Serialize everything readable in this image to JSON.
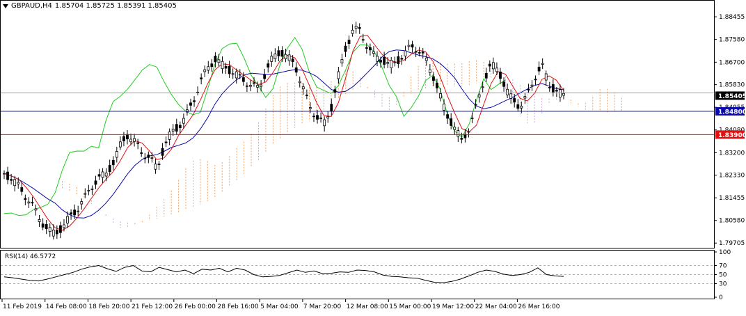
{
  "header": {
    "symbol": "GBPAUD,H4",
    "ohlc": "1.85704 1.85725 1.85391 1.85405"
  },
  "rsi_panel": {
    "label": "RSI(14) 46.5772"
  },
  "price_axis": {
    "ticks": [
      "1.88455",
      "1.87580",
      "1.86700",
      "1.85830",
      "1.84955",
      "1.84080",
      "1.83200",
      "1.82330",
      "1.81455",
      "1.80580",
      "1.79705"
    ],
    "labels": {
      "current": {
        "text": "1.85405",
        "value": 1.85405,
        "color": "#000000"
      },
      "blue": {
        "text": "1.84800",
        "value": 1.848,
        "color": "#0a0aa8"
      },
      "red": {
        "text": "1.83900",
        "value": 1.839,
        "color": "#e01010"
      }
    }
  },
  "rsi_axis": {
    "ticks": [
      "100",
      "70",
      "50",
      "30",
      "0"
    ]
  },
  "time_axis": {
    "labels": [
      "11 Feb 2019",
      "14 Feb 08:00",
      "18 Feb 20:00",
      "21 Feb 12:00",
      "26 Feb 00:00",
      "28 Feb 16:00",
      "5 Mar 04:00",
      "7 Mar 20:00",
      "12 Mar 08:00",
      "15 Mar 00:00",
      "19 Mar 12:00",
      "22 Mar 04:00",
      "26 Mar 16:00"
    ]
  },
  "chart_data": {
    "type": "line",
    "title": "GBPAUD,H4",
    "ylim": [
      1.7955,
      1.8905
    ],
    "hlines": [
      {
        "name": "orange",
        "value": 1.8551,
        "color": "#d88a3a"
      },
      {
        "name": "blue",
        "value": 1.848,
        "color": "#0a0aa8"
      },
      {
        "name": "red",
        "value": 1.839,
        "color": "#e01010"
      }
    ],
    "price_path": [
      1.824,
      1.822,
      1.819,
      1.815,
      1.811,
      1.806,
      1.802,
      1.801,
      1.803,
      1.807,
      1.81,
      1.814,
      1.819,
      1.822,
      1.824,
      1.828,
      1.835,
      1.839,
      1.836,
      1.832,
      1.83,
      1.826,
      1.834,
      1.84,
      1.842,
      1.846,
      1.852,
      1.859,
      1.865,
      1.868,
      1.866,
      1.864,
      1.862,
      1.86,
      1.858,
      1.857,
      1.863,
      1.869,
      1.871,
      1.869,
      1.866,
      1.858,
      1.85,
      1.846,
      1.843,
      1.849,
      1.862,
      1.872,
      1.88,
      1.879,
      1.873,
      1.869,
      1.868,
      1.866,
      1.867,
      1.87,
      1.873,
      1.872,
      1.868,
      1.862,
      1.854,
      1.846,
      1.842,
      1.836,
      1.842,
      1.85,
      1.86,
      1.866,
      1.864,
      1.857,
      1.852,
      1.85,
      1.854,
      1.861,
      1.866,
      1.858,
      1.856,
      1.854
    ],
    "rsi_values": [
      45,
      43,
      40,
      37,
      36,
      40,
      45,
      50,
      55,
      62,
      67,
      70,
      63,
      57,
      66,
      70,
      58,
      56,
      66,
      61,
      56,
      60,
      52,
      62,
      60,
      64,
      56,
      64,
      60,
      50,
      45,
      46,
      48,
      54,
      60,
      55,
      58,
      52,
      53,
      56,
      55,
      60,
      59,
      56,
      49,
      46,
      45,
      43,
      42,
      37,
      33,
      32,
      35,
      40,
      47,
      55,
      60,
      57,
      51,
      48,
      50,
      55,
      65,
      50,
      47,
      46
    ],
    "rsi_ylim": [
      0,
      100
    ],
    "rsi_levels": [
      70,
      50,
      30
    ]
  }
}
